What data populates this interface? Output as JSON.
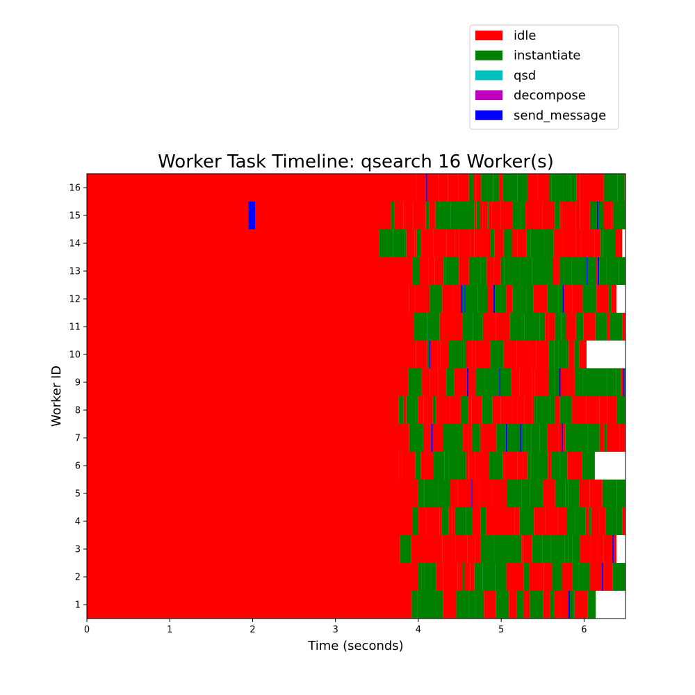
{
  "chart_data": {
    "type": "timeline",
    "title": "Worker Task Timeline: qsearch 16 Worker(s)",
    "xlabel": "Time (seconds)",
    "ylabel": "Worker ID",
    "xlim": [
      0,
      6.5
    ],
    "ylim": [
      0.5,
      16.5
    ],
    "x_ticks": [
      0,
      1,
      2,
      3,
      4,
      5,
      6
    ],
    "y_ticks": [
      1,
      2,
      3,
      4,
      5,
      6,
      7,
      8,
      9,
      10,
      11,
      12,
      13,
      14,
      15,
      16
    ],
    "legend_position": "upper-right",
    "tasks": [
      {
        "name": "idle",
        "color": "#ff0000"
      },
      {
        "name": "instantiate",
        "color": "#008000"
      },
      {
        "name": "qsd",
        "color": "#00bfbf"
      },
      {
        "name": "decompose",
        "color": "#bf00bf"
      },
      {
        "name": "send_message",
        "color": "#0000ff"
      }
    ],
    "workers": [
      {
        "id": 1,
        "end": 6.14,
        "activity_start": 3.92
      },
      {
        "id": 2,
        "end": 6.5,
        "activity_start": 4.0
      },
      {
        "id": 3,
        "end": 6.39,
        "activity_start": 3.78
      },
      {
        "id": 4,
        "end": 6.5,
        "activity_start": 3.93
      },
      {
        "id": 5,
        "end": 6.5,
        "activity_start": 4.0
      },
      {
        "id": 6,
        "end": 6.13,
        "activity_start": 3.76
      },
      {
        "id": 7,
        "end": 6.5,
        "activity_start": 3.89
      },
      {
        "id": 8,
        "end": 6.5,
        "activity_start": 3.76
      },
      {
        "id": 9,
        "end": 6.5,
        "activity_start": 3.88
      },
      {
        "id": 10,
        "end": 6.03,
        "activity_start": 3.97
      },
      {
        "id": 11,
        "end": 6.5,
        "activity_start": 3.95
      },
      {
        "id": 12,
        "end": 6.39,
        "activity_start": 3.89
      },
      {
        "id": 13,
        "end": 6.5,
        "activity_start": 3.93
      },
      {
        "id": 14,
        "end": 6.46,
        "activity_start": 3.53
      },
      {
        "id": 15,
        "end": 6.5,
        "activity_start": 3.67
      },
      {
        "id": 16,
        "end": 6.5,
        "activity_start": 3.98
      }
    ],
    "events": [
      {
        "worker": 15,
        "task": "send_message",
        "start": 1.95,
        "end": 2.03
      }
    ]
  }
}
